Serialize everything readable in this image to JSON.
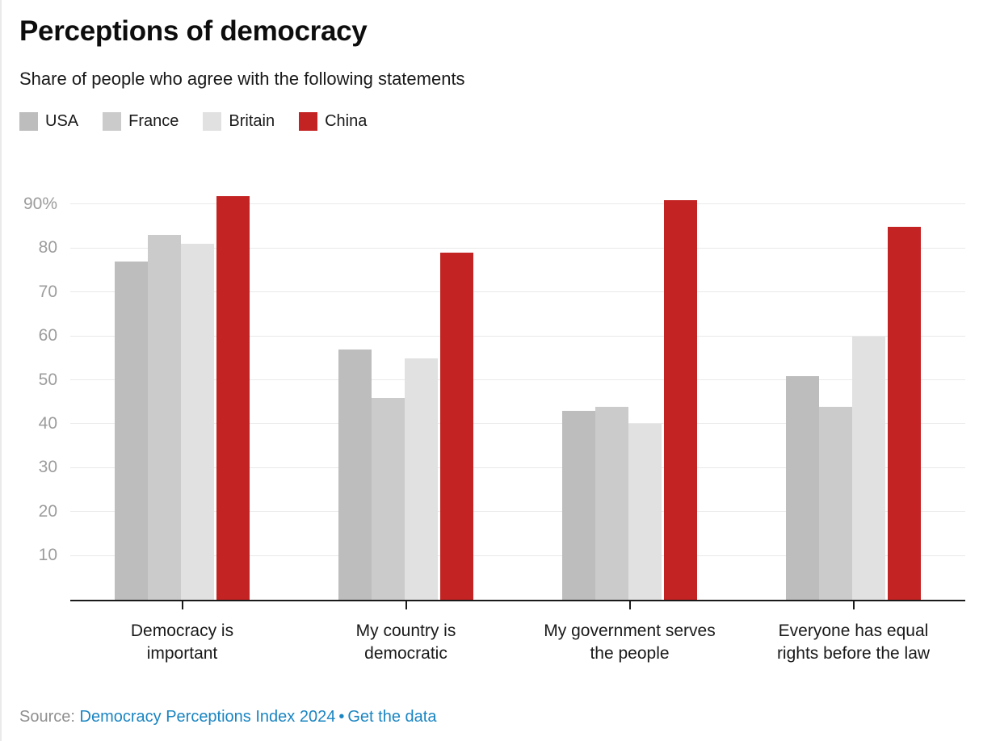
{
  "header": {
    "title": "Perceptions of democracy",
    "subtitle": "Share of people who agree with the following statements"
  },
  "chart_data": {
    "type": "bar",
    "title": "Perceptions of democracy",
    "subtitle": "Share of people who agree with the following statements",
    "categories": [
      "Democracy is important",
      "My country is democratic",
      "My government serves the people",
      "Everyone has equal rights before the law"
    ],
    "series": [
      {
        "name": "USA",
        "color": "#bdbdbd",
        "values": [
          77,
          57,
          43,
          51
        ]
      },
      {
        "name": "France",
        "color": "#cbcbcb",
        "values": [
          83,
          46,
          44,
          44
        ]
      },
      {
        "name": "Britain",
        "color": "#e1e1e1",
        "values": [
          81,
          55,
          40,
          60
        ]
      },
      {
        "name": "China",
        "color": "#c32423",
        "values": [
          92,
          79,
          91,
          85
        ]
      }
    ],
    "unit": "%",
    "y_axis": {
      "min": 0,
      "max": 100,
      "ticks": [
        10,
        20,
        30,
        40,
        50,
        60,
        70,
        80,
        90
      ],
      "top_tick_label": "90%"
    },
    "grid": true,
    "legend_position": "top-left"
  },
  "footer": {
    "source_label": "Source:",
    "source_link_text": "Democracy Perceptions Index 2024",
    "separator": "•",
    "get_data_link_text": "Get the data"
  },
  "colors": {
    "link_blue": "#1a85c2",
    "axis_black": "#1a1a1a",
    "grid_gray": "#e9e9e9",
    "tick_label_gray": "#9c9c9c",
    "source_gray": "#8f8f8f"
  }
}
